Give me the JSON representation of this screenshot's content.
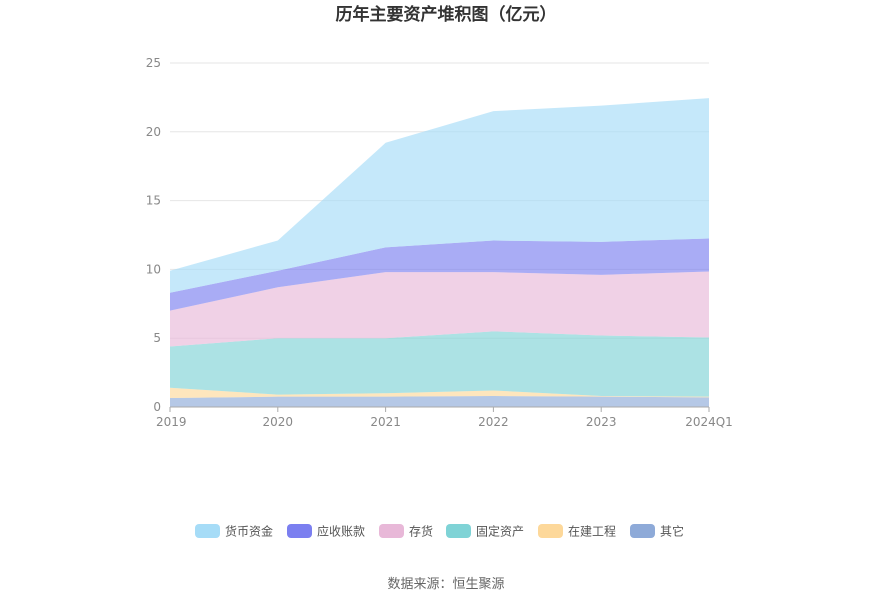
{
  "chart_data": {
    "type": "area",
    "stacked": true,
    "title": "历年主要资产堆积图（亿元）",
    "categories": [
      "2019",
      "2020",
      "2021",
      "2022",
      "2023",
      "2024Q1"
    ],
    "ylim": [
      0,
      25
    ],
    "yticks": [
      0,
      5,
      10,
      15,
      20,
      25
    ],
    "grid": true,
    "legend_position": "bottom",
    "series": [
      {
        "name": "其它",
        "color": "#8eaad8",
        "values": [
          0.65,
          0.75,
          0.75,
          0.8,
          0.75,
          0.7
        ]
      },
      {
        "name": "在建工程",
        "color": "#fdd89a",
        "values": [
          0.75,
          0.15,
          0.25,
          0.4,
          0.05,
          0.05
        ]
      },
      {
        "name": "固定资产",
        "color": "#7fd3d6",
        "values": [
          3.0,
          4.1,
          4.0,
          4.3,
          4.4,
          4.3
        ]
      },
      {
        "name": "存货",
        "color": "#e8b8d8",
        "values": [
          2.6,
          3.7,
          4.8,
          4.3,
          4.4,
          4.8
        ]
      },
      {
        "name": "应收账款",
        "color": "#7b7ff0",
        "values": [
          1.3,
          1.2,
          1.8,
          2.3,
          2.4,
          2.4
        ]
      },
      {
        "name": "货币资金",
        "color": "#a6dcf7",
        "values": [
          1.6,
          2.2,
          7.6,
          9.4,
          9.9,
          10.2
        ]
      }
    ],
    "legend_order": [
      "货币资金",
      "应收账款",
      "存货",
      "固定资产",
      "在建工程",
      "其它"
    ]
  },
  "source": "数据来源：恒生聚源"
}
